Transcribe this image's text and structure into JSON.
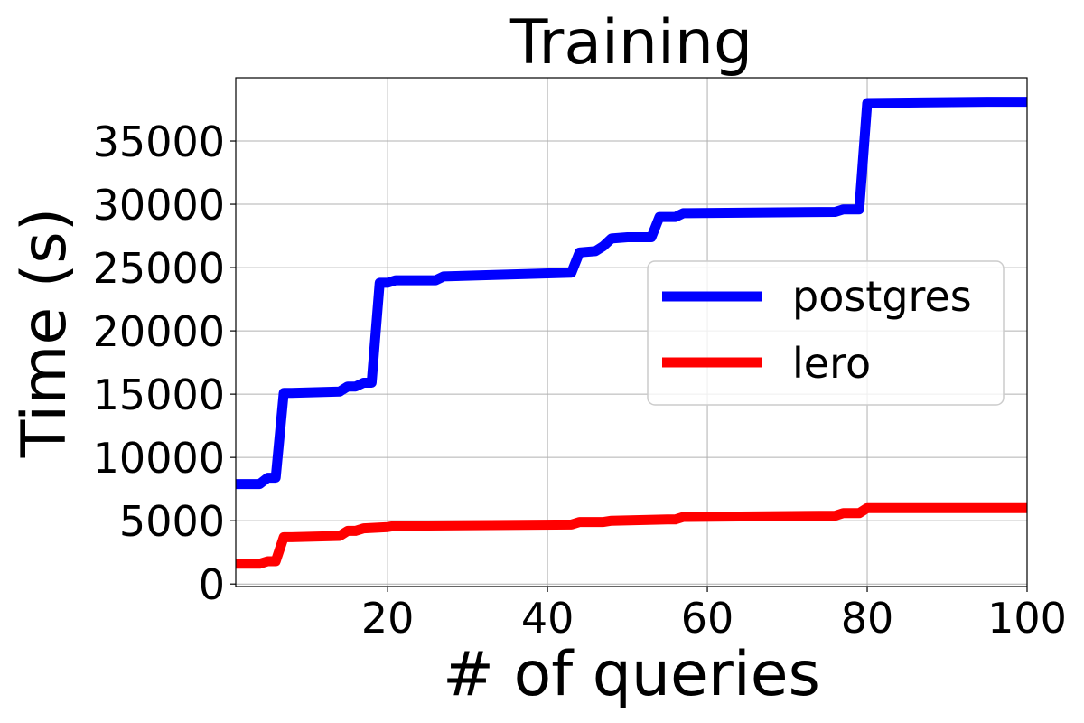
{
  "chart_data": {
    "type": "line",
    "title": "Training",
    "xlabel": "# of queries",
    "ylabel": "Time (s)",
    "xlim": [
      1,
      100
    ],
    "ylim": [
      -200,
      40000
    ],
    "xticks": [
      20,
      40,
      60,
      80,
      100
    ],
    "yticks": [
      0,
      5000,
      10000,
      15000,
      20000,
      25000,
      30000,
      35000
    ],
    "grid": true,
    "legend_position": "center-right",
    "series": [
      {
        "name": "postgres",
        "color": "#0000ff",
        "x": [
          1,
          4,
          5,
          6,
          7,
          8,
          14,
          15,
          16,
          17,
          18,
          19,
          20,
          21,
          26,
          27,
          43,
          44,
          46,
          47,
          48,
          50,
          53,
          54,
          56,
          57,
          76,
          77,
          79,
          80,
          95,
          100
        ],
        "y": [
          7900,
          7900,
          8400,
          8400,
          15100,
          15100,
          15200,
          15600,
          15600,
          15900,
          15900,
          23800,
          23800,
          24000,
          24000,
          24300,
          24600,
          26200,
          26300,
          26700,
          27300,
          27400,
          27400,
          29000,
          29000,
          29300,
          29400,
          29600,
          29600,
          38000,
          38100,
          38100
        ]
      },
      {
        "name": "lero",
        "color": "#ff0000",
        "x": [
          1,
          4,
          5,
          6,
          7,
          8,
          14,
          15,
          16,
          17,
          20,
          21,
          43,
          44,
          47,
          48,
          55,
          56,
          57,
          76,
          77,
          79,
          80,
          95,
          100
        ],
        "y": [
          1600,
          1600,
          1800,
          1800,
          3700,
          3700,
          3800,
          4200,
          4200,
          4400,
          4500,
          4600,
          4700,
          4900,
          4900,
          5000,
          5100,
          5100,
          5300,
          5400,
          5600,
          5600,
          6000,
          6000,
          6000
        ]
      }
    ]
  }
}
